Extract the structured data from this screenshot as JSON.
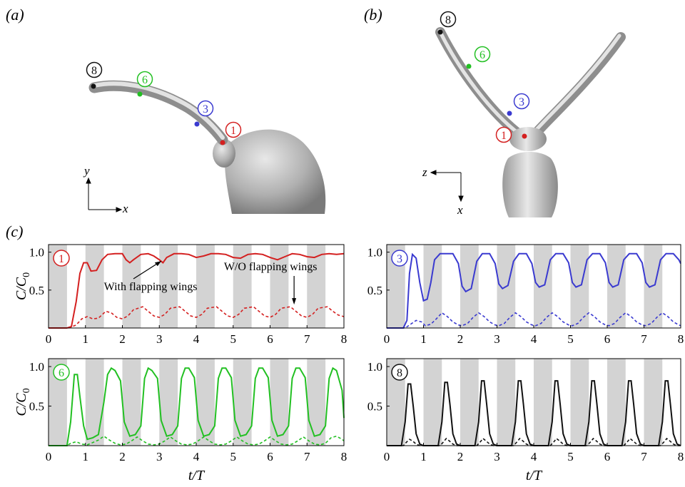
{
  "panel_labels": {
    "a": "(a)",
    "b": "(b)",
    "c": "(c)"
  },
  "probe_labels": {
    "p1": "1",
    "p3": "3",
    "p6": "6",
    "p8": "8"
  },
  "colors": {
    "p1": "#d42020",
    "p3": "#3a3ad0",
    "p6": "#22c022",
    "p8": "#111111",
    "band": "#d3d3d3"
  },
  "axes_a": {
    "v": "y",
    "h": "x"
  },
  "axes_b": {
    "v": "x",
    "h": "z"
  },
  "annotations": {
    "with": "With flapping wings",
    "without": "W/O flapping wings"
  },
  "ylabel": "C/C0",
  "xlabel": "t/T",
  "chart_data": [
    {
      "type": "line",
      "probe": "1",
      "color": "#d42020",
      "xlim": [
        0,
        8
      ],
      "ylim": [
        0,
        1.1
      ],
      "xticks": [
        "0",
        "1",
        "2",
        "3",
        "4",
        "5",
        "6",
        "7",
        "8"
      ],
      "yticks": [
        "0.5",
        "1.0"
      ],
      "shaded_bands": [
        [
          0,
          0.5
        ],
        [
          1,
          1.5
        ],
        [
          2,
          2.5
        ],
        [
          3,
          3.5
        ],
        [
          4,
          4.5
        ],
        [
          5,
          5.5
        ],
        [
          6,
          6.5
        ],
        [
          7,
          7.5
        ]
      ],
      "series": [
        {
          "style": "solid",
          "x": [
            0,
            0.5,
            0.62,
            0.75,
            0.85,
            0.95,
            1.05,
            1.15,
            1.3,
            1.45,
            1.6,
            1.8,
            2.0,
            2.1,
            2.2,
            2.3,
            2.5,
            2.7,
            2.85,
            3.0,
            3.1,
            3.2,
            3.4,
            3.6,
            3.8,
            4.0,
            4.2,
            4.4,
            4.6,
            4.8,
            5.0,
            5.2,
            5.4,
            5.6,
            5.8,
            6.0,
            6.2,
            6.4,
            6.6,
            6.8,
            7.0,
            7.2,
            7.4,
            7.6,
            7.8,
            8.0
          ],
          "y": [
            0,
            0,
            0.02,
            0.35,
            0.72,
            0.86,
            0.86,
            0.75,
            0.76,
            0.9,
            0.97,
            0.98,
            0.98,
            0.9,
            0.86,
            0.9,
            0.97,
            0.98,
            0.95,
            0.9,
            0.86,
            0.93,
            0.98,
            0.98,
            0.97,
            0.93,
            0.95,
            0.98,
            0.98,
            0.97,
            0.93,
            0.92,
            0.97,
            0.98,
            0.97,
            0.93,
            0.9,
            0.94,
            0.98,
            0.97,
            0.94,
            0.93,
            0.97,
            0.98,
            0.97,
            0.98
          ]
        },
        {
          "style": "dashed",
          "x": [
            0,
            0.55,
            0.75,
            0.9,
            1.05,
            1.2,
            1.35,
            1.55,
            1.7,
            1.85,
            2.0,
            2.15,
            2.3,
            2.55,
            2.7,
            2.85,
            3.0,
            3.15,
            3.3,
            3.55,
            3.7,
            3.85,
            4.0,
            4.15,
            4.3,
            4.55,
            4.7,
            4.85,
            5.0,
            5.15,
            5.3,
            5.55,
            5.7,
            5.85,
            6.0,
            6.15,
            6.3,
            6.55,
            6.7,
            6.85,
            7.0,
            7.15,
            7.3,
            7.55,
            7.7,
            7.85,
            8.0
          ],
          "y": [
            0,
            0,
            0.04,
            0.12,
            0.15,
            0.12,
            0.13,
            0.22,
            0.2,
            0.14,
            0.12,
            0.16,
            0.24,
            0.28,
            0.22,
            0.16,
            0.14,
            0.18,
            0.26,
            0.28,
            0.22,
            0.16,
            0.14,
            0.18,
            0.26,
            0.28,
            0.22,
            0.16,
            0.14,
            0.18,
            0.26,
            0.28,
            0.22,
            0.16,
            0.14,
            0.18,
            0.26,
            0.28,
            0.22,
            0.16,
            0.14,
            0.18,
            0.26,
            0.28,
            0.22,
            0.17,
            0.15
          ]
        }
      ]
    },
    {
      "type": "line",
      "probe": "3",
      "color": "#3a3ad0",
      "xlim": [
        0,
        8
      ],
      "ylim": [
        0,
        1.1
      ],
      "xticks": [
        "0",
        "1",
        "2",
        "3",
        "4",
        "5",
        "6",
        "7",
        "8"
      ],
      "yticks": [
        "0.5",
        "1.0"
      ],
      "shaded_bands": [
        [
          0,
          0.5
        ],
        [
          1,
          1.5
        ],
        [
          2,
          2.5
        ],
        [
          3,
          3.5
        ],
        [
          4,
          4.5
        ],
        [
          5,
          5.5
        ],
        [
          6,
          6.5
        ],
        [
          7,
          7.5
        ]
      ],
      "series": [
        {
          "style": "solid",
          "x": [
            0,
            0.45,
            0.55,
            0.62,
            0.7,
            0.8,
            0.9,
            1.0,
            1.1,
            1.2,
            1.3,
            1.45,
            1.6,
            1.8,
            1.95,
            2.05,
            2.15,
            2.3,
            2.45,
            2.6,
            2.8,
            2.95,
            3.05,
            3.15,
            3.3,
            3.45,
            3.6,
            3.8,
            3.95,
            4.05,
            4.15,
            4.3,
            4.45,
            4.6,
            4.8,
            4.95,
            5.05,
            5.15,
            5.3,
            5.45,
            5.6,
            5.8,
            5.95,
            6.05,
            6.15,
            6.3,
            6.45,
            6.6,
            6.8,
            6.95,
            7.05,
            7.15,
            7.3,
            7.45,
            7.6,
            7.8,
            7.95,
            8.0
          ],
          "y": [
            0,
            0,
            0.1,
            0.72,
            0.97,
            0.92,
            0.6,
            0.36,
            0.38,
            0.6,
            0.9,
            0.98,
            0.98,
            0.98,
            0.85,
            0.55,
            0.48,
            0.52,
            0.88,
            0.98,
            0.98,
            0.85,
            0.58,
            0.52,
            0.56,
            0.88,
            0.98,
            0.98,
            0.85,
            0.6,
            0.54,
            0.57,
            0.9,
            0.98,
            0.98,
            0.86,
            0.6,
            0.54,
            0.57,
            0.9,
            0.98,
            0.98,
            0.86,
            0.6,
            0.54,
            0.57,
            0.9,
            0.98,
            0.98,
            0.86,
            0.6,
            0.54,
            0.57,
            0.9,
            0.98,
            0.98,
            0.9,
            0.85
          ]
        },
        {
          "style": "dashed",
          "x": [
            0,
            0.5,
            0.65,
            0.8,
            0.95,
            1.05,
            1.2,
            1.35,
            1.5,
            1.65,
            1.8,
            1.95,
            2.05,
            2.2,
            2.35,
            2.5,
            2.65,
            2.8,
            2.95,
            3.05,
            3.2,
            3.35,
            3.5,
            3.65,
            3.8,
            3.95,
            4.05,
            4.2,
            4.35,
            4.5,
            4.65,
            4.8,
            4.95,
            5.05,
            5.2,
            5.35,
            5.5,
            5.65,
            5.8,
            5.95,
            6.05,
            6.2,
            6.35,
            6.5,
            6.65,
            6.8,
            6.95,
            7.05,
            7.2,
            7.35,
            7.5,
            7.65,
            7.8,
            7.95,
            8.0
          ],
          "y": [
            0,
            0,
            0.05,
            0.1,
            0.08,
            0.03,
            0.05,
            0.12,
            0.2,
            0.15,
            0.08,
            0.04,
            0.03,
            0.06,
            0.14,
            0.2,
            0.15,
            0.08,
            0.04,
            0.03,
            0.06,
            0.14,
            0.2,
            0.15,
            0.08,
            0.04,
            0.03,
            0.06,
            0.14,
            0.2,
            0.15,
            0.08,
            0.04,
            0.03,
            0.06,
            0.14,
            0.2,
            0.15,
            0.08,
            0.04,
            0.03,
            0.06,
            0.14,
            0.2,
            0.15,
            0.08,
            0.04,
            0.03,
            0.06,
            0.14,
            0.2,
            0.15,
            0.08,
            0.04,
            0.03
          ]
        }
      ]
    },
    {
      "type": "line",
      "probe": "6",
      "color": "#22c022",
      "xlim": [
        0,
        8
      ],
      "ylim": [
        0,
        1.1
      ],
      "xticks": [
        "0",
        "1",
        "2",
        "3",
        "4",
        "5",
        "6",
        "7",
        "8"
      ],
      "yticks": [
        "0.5",
        "1.0"
      ],
      "shaded_bands": [
        [
          0,
          0.5
        ],
        [
          1,
          1.5
        ],
        [
          2,
          2.5
        ],
        [
          3,
          3.5
        ],
        [
          4,
          4.5
        ],
        [
          5,
          5.5
        ],
        [
          6,
          6.5
        ],
        [
          7,
          7.5
        ]
      ],
      "series": [
        {
          "style": "solid",
          "x": [
            0,
            0.5,
            0.6,
            0.7,
            0.78,
            0.85,
            0.95,
            1.05,
            1.2,
            1.35,
            1.5,
            1.6,
            1.7,
            1.8,
            1.95,
            2.05,
            2.2,
            2.35,
            2.5,
            2.6,
            2.7,
            2.8,
            2.95,
            3.05,
            3.2,
            3.35,
            3.5,
            3.6,
            3.7,
            3.8,
            3.95,
            4.05,
            4.2,
            4.35,
            4.5,
            4.6,
            4.7,
            4.8,
            4.95,
            5.05,
            5.2,
            5.35,
            5.5,
            5.6,
            5.7,
            5.8,
            5.95,
            6.05,
            6.2,
            6.35,
            6.5,
            6.6,
            6.7,
            6.8,
            6.95,
            7.05,
            7.2,
            7.35,
            7.5,
            7.6,
            7.7,
            7.8,
            7.95,
            8.0
          ],
          "y": [
            0,
            0,
            0.3,
            0.9,
            0.9,
            0.62,
            0.25,
            0.08,
            0.1,
            0.14,
            0.55,
            0.9,
            0.98,
            0.95,
            0.82,
            0.3,
            0.12,
            0.14,
            0.25,
            0.85,
            0.98,
            0.95,
            0.85,
            0.32,
            0.12,
            0.14,
            0.25,
            0.85,
            0.98,
            0.98,
            0.86,
            0.32,
            0.12,
            0.14,
            0.25,
            0.85,
            0.98,
            0.98,
            0.86,
            0.32,
            0.12,
            0.14,
            0.25,
            0.85,
            0.98,
            0.98,
            0.86,
            0.32,
            0.12,
            0.14,
            0.25,
            0.85,
            0.98,
            0.98,
            0.86,
            0.32,
            0.12,
            0.14,
            0.25,
            0.85,
            0.98,
            0.95,
            0.7,
            0.35
          ]
        },
        {
          "style": "dashed",
          "x": [
            0,
            0.5,
            0.6,
            0.75,
            0.9,
            1.05,
            1.2,
            1.35,
            1.5,
            1.65,
            1.8,
            1.95,
            2.1,
            2.25,
            2.4,
            2.55,
            2.7,
            2.85,
            3.0,
            3.15,
            3.3,
            3.45,
            3.6,
            3.75,
            3.9,
            4.05,
            4.2,
            4.35,
            4.5,
            4.65,
            4.8,
            4.95,
            5.1,
            5.25,
            5.4,
            5.55,
            5.7,
            5.85,
            6.0,
            6.15,
            6.3,
            6.45,
            6.6,
            6.75,
            6.9,
            7.05,
            7.2,
            7.35,
            7.5,
            7.65,
            7.8,
            7.95,
            8.0
          ],
          "y": [
            0,
            0,
            0.03,
            0.05,
            0.02,
            0.01,
            0.04,
            0.07,
            0.12,
            0.07,
            0.03,
            0.01,
            0.02,
            0.06,
            0.11,
            0.06,
            0.02,
            0.01,
            0.02,
            0.06,
            0.11,
            0.06,
            0.02,
            0.01,
            0.02,
            0.06,
            0.11,
            0.06,
            0.02,
            0.01,
            0.02,
            0.06,
            0.11,
            0.06,
            0.02,
            0.01,
            0.02,
            0.06,
            0.11,
            0.06,
            0.02,
            0.01,
            0.02,
            0.06,
            0.11,
            0.06,
            0.02,
            0.01,
            0.03,
            0.1,
            0.12,
            0.08,
            0.06
          ]
        }
      ]
    },
    {
      "type": "line",
      "probe": "8",
      "color": "#111111",
      "xlim": [
        0,
        8
      ],
      "ylim": [
        0,
        1.1
      ],
      "xticks": [
        "0",
        "1",
        "2",
        "3",
        "4",
        "5",
        "6",
        "7",
        "8"
      ],
      "yticks": [
        "0.5",
        "1.0"
      ],
      "shaded_bands": [
        [
          0,
          0.5
        ],
        [
          1,
          1.5
        ],
        [
          2,
          2.5
        ],
        [
          3,
          3.5
        ],
        [
          4,
          4.5
        ],
        [
          5,
          5.5
        ],
        [
          6,
          6.5
        ],
        [
          7,
          7.5
        ]
      ],
      "series": [
        {
          "style": "solid",
          "x": [
            0,
            0.4,
            0.5,
            0.58,
            0.65,
            0.72,
            0.8,
            0.9,
            1.0,
            1.4,
            1.5,
            1.58,
            1.65,
            1.72,
            1.8,
            1.9,
            2.0,
            2.4,
            2.5,
            2.58,
            2.65,
            2.72,
            2.8,
            2.9,
            3.0,
            3.4,
            3.5,
            3.58,
            3.65,
            3.72,
            3.8,
            3.9,
            4.0,
            4.4,
            4.5,
            4.58,
            4.65,
            4.72,
            4.8,
            4.9,
            5.0,
            5.4,
            5.5,
            5.58,
            5.65,
            5.72,
            5.8,
            5.9,
            6.0,
            6.4,
            6.5,
            6.58,
            6.65,
            6.72,
            6.8,
            6.9,
            7.0,
            7.4,
            7.5,
            7.58,
            7.65,
            7.72,
            7.8,
            7.9,
            8.0
          ],
          "y": [
            0,
            0,
            0.3,
            0.78,
            0.78,
            0.5,
            0.15,
            0.02,
            0,
            0,
            0.3,
            0.8,
            0.8,
            0.52,
            0.15,
            0.02,
            0,
            0,
            0.3,
            0.82,
            0.82,
            0.52,
            0.15,
            0.02,
            0,
            0,
            0.3,
            0.82,
            0.82,
            0.52,
            0.15,
            0.02,
            0,
            0,
            0.3,
            0.82,
            0.82,
            0.52,
            0.15,
            0.02,
            0,
            0,
            0.3,
            0.82,
            0.82,
            0.52,
            0.15,
            0.02,
            0,
            0,
            0.3,
            0.82,
            0.82,
            0.52,
            0.15,
            0.02,
            0,
            0,
            0.3,
            0.82,
            0.82,
            0.52,
            0.15,
            0.02,
            0
          ]
        },
        {
          "style": "dashed",
          "x": [
            0,
            0.45,
            0.55,
            0.62,
            0.7,
            0.8,
            0.9,
            1.45,
            1.55,
            1.62,
            1.7,
            1.8,
            1.9,
            2.45,
            2.55,
            2.62,
            2.7,
            2.8,
            2.9,
            3.45,
            3.55,
            3.62,
            3.7,
            3.8,
            3.9,
            4.45,
            4.55,
            4.62,
            4.7,
            4.8,
            4.9,
            5.45,
            5.55,
            5.62,
            5.7,
            5.8,
            5.9,
            6.45,
            6.55,
            6.62,
            6.7,
            6.8,
            6.9,
            7.45,
            7.55,
            7.62,
            7.7,
            7.8,
            7.9,
            8.0
          ],
          "y": [
            0,
            0,
            0.05,
            0.08,
            0.06,
            0.02,
            0,
            0,
            0.05,
            0.09,
            0.06,
            0.02,
            0,
            0,
            0.05,
            0.09,
            0.06,
            0.02,
            0,
            0,
            0.05,
            0.09,
            0.06,
            0.02,
            0,
            0,
            0.05,
            0.09,
            0.06,
            0.02,
            0,
            0,
            0.05,
            0.09,
            0.06,
            0.02,
            0,
            0,
            0.05,
            0.09,
            0.06,
            0.02,
            0,
            0,
            0.05,
            0.09,
            0.06,
            0.02,
            0,
            0
          ]
        }
      ]
    }
  ]
}
